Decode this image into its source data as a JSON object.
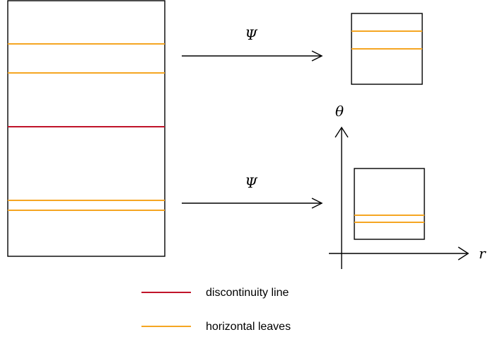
{
  "map_labels": [
    "Ψ",
    "Ψ"
  ],
  "axes": {
    "vertical": "θ",
    "horizontal": "r"
  },
  "legend": [
    {
      "label": "discontinuity line",
      "color": "#c0142a"
    },
    {
      "label": "horizontal leaves",
      "color": "#f5a623"
    }
  ],
  "colors": {
    "stroke": "#000000",
    "discontinuity": "#c0142a",
    "leaf": "#f5a623"
  }
}
